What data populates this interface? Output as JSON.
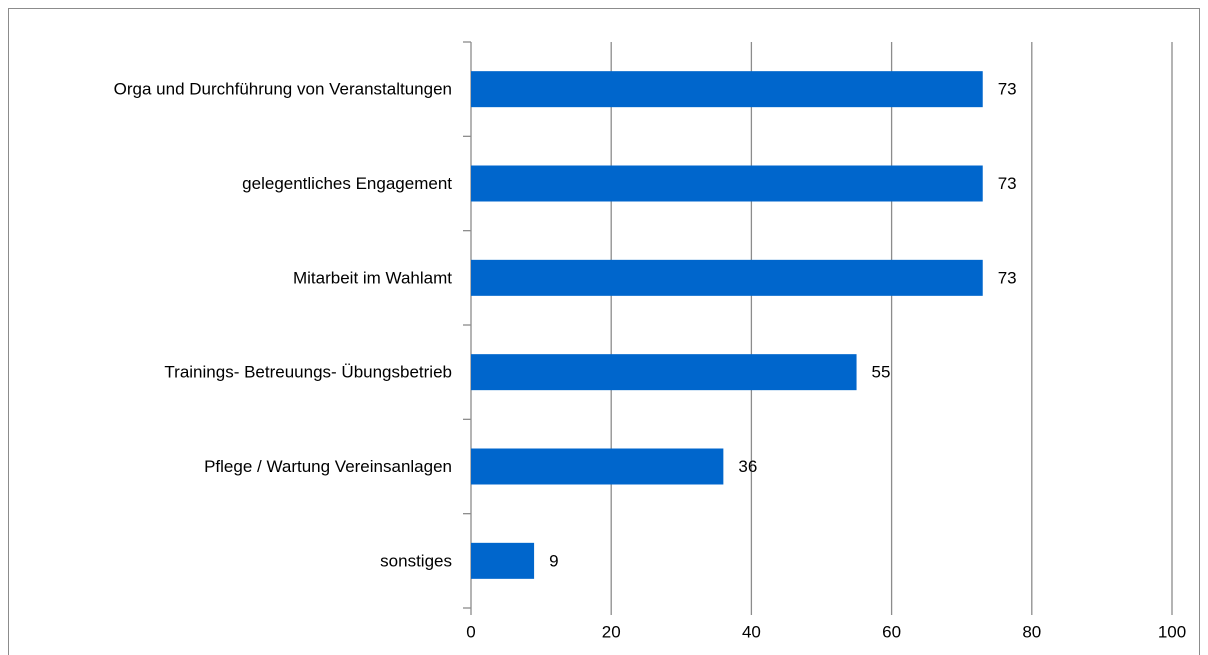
{
  "chart_data": {
    "type": "barh",
    "categories": [
      "Orga und Durchführung von Veranstaltungen",
      "gelegentliches Engagement",
      "Mitarbeit im Wahlamt",
      "Trainings- Betreuungs- Übungsbetrieb",
      "Pflege / Wartung Vereinsanlagen",
      "sonstiges"
    ],
    "values": [
      73,
      73,
      73,
      55,
      36,
      9
    ],
    "color": "#0066cc",
    "xlim": [
      0,
      100
    ],
    "xticks": [
      0,
      20,
      40,
      60,
      80,
      100
    ],
    "grid": true
  }
}
